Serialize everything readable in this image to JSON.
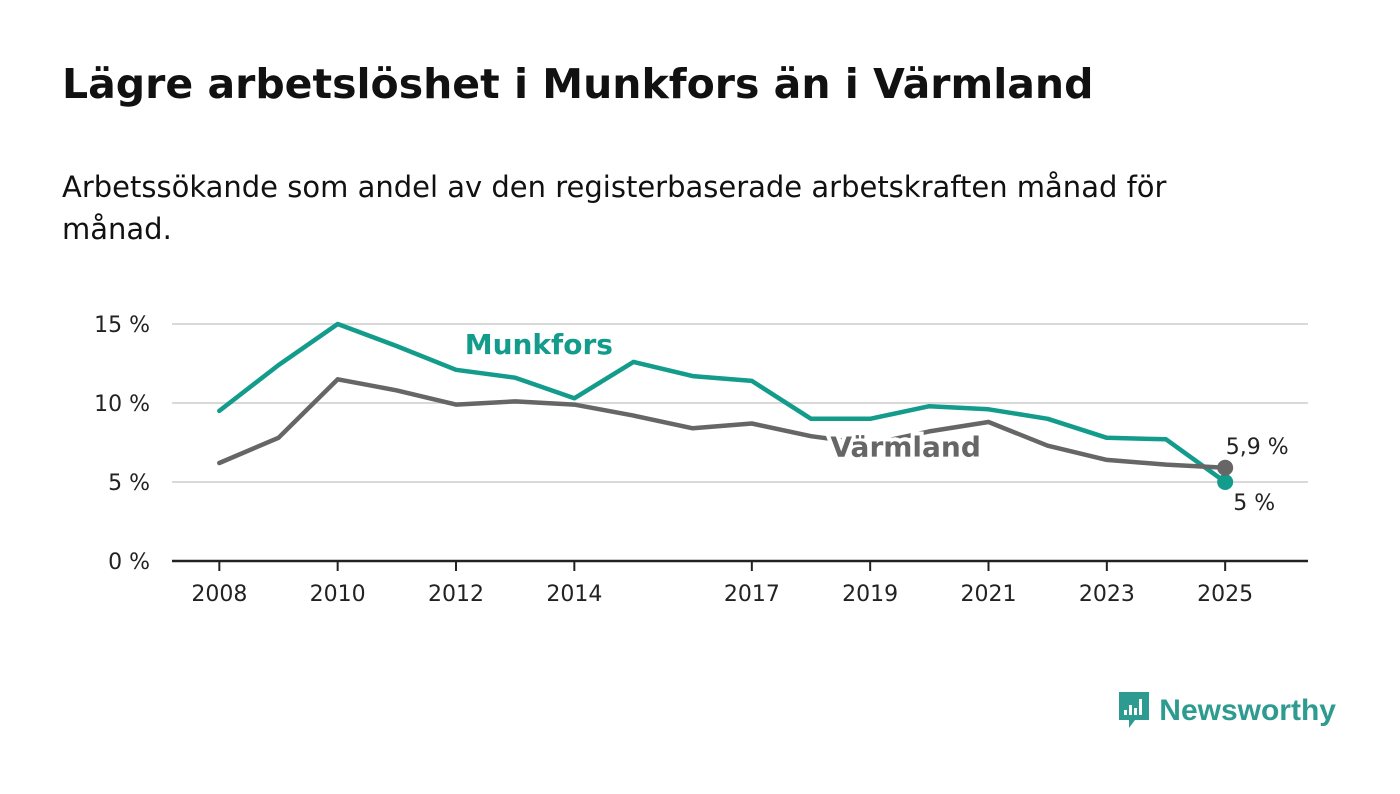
{
  "title": "Lägre arbetslöshet i Munkfors än i Värmland",
  "subtitle": "Arbetssökande som andel av den registerbaserade arbetskraften månad för månad.",
  "brand": "Newsworthy",
  "colors": {
    "munkfors": "#139b8b",
    "varmland": "#666666",
    "grid": "#d9d9d9",
    "axis": "#222222",
    "brand": "#2e9b90"
  },
  "chart_data": {
    "type": "line",
    "x": [
      2008,
      2009,
      2010,
      2011,
      2012,
      2013,
      2014,
      2015,
      2016,
      2017,
      2018,
      2019,
      2020,
      2021,
      2022,
      2023,
      2024,
      2025
    ],
    "x_ticks": [
      2008,
      2010,
      2012,
      2014,
      2017,
      2019,
      2021,
      2023,
      2025
    ],
    "y_ticks": [
      0,
      5,
      10,
      15
    ],
    "y_tick_labels": [
      "0 %",
      "5 %",
      "10 %",
      "15 %"
    ],
    "ylim": [
      0,
      15
    ],
    "xlim": [
      2007.2,
      2026.4
    ],
    "grid": true,
    "series": [
      {
        "name": "Munkfors",
        "values": [
          9.5,
          12.4,
          15.0,
          13.6,
          12.1,
          11.6,
          10.3,
          12.6,
          11.7,
          11.4,
          9.0,
          9.0,
          9.8,
          9.6,
          9.0,
          7.8,
          7.7,
          5.0
        ],
        "end_label": "5 %"
      },
      {
        "name": "Värmland",
        "values": [
          6.2,
          7.8,
          11.5,
          10.8,
          9.9,
          10.1,
          9.9,
          9.2,
          8.4,
          8.7,
          7.9,
          7.4,
          8.2,
          8.8,
          7.3,
          6.4,
          6.1,
          5.9
        ],
        "end_label": "5,9 %"
      }
    ]
  }
}
